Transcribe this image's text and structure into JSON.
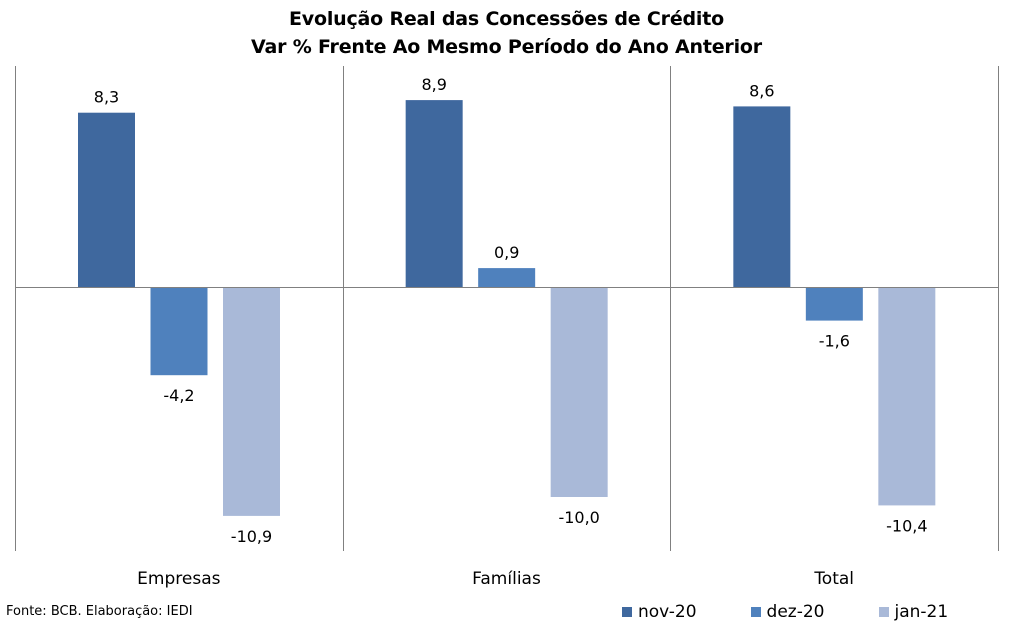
{
  "chart_data": {
    "type": "bar",
    "title": "Evolução Real das Concessões de Crédito",
    "subtitle": "Var % Frente Ao Mesmo Período do Ano Anterior",
    "categories": [
      "Empresas",
      "Famílias",
      "Total"
    ],
    "series": [
      {
        "name": "nov-20",
        "color": "#3F689E",
        "values": [
          8.3,
          8.9,
          8.6
        ],
        "labels": [
          "8,3",
          "8,9",
          "8,6"
        ]
      },
      {
        "name": "dez-20",
        "color": "#4F81BD",
        "values": [
          -4.2,
          0.9,
          -1.6
        ],
        "labels": [
          "-4,2",
          "0,9",
          "-1,6"
        ]
      },
      {
        "name": "jan-21",
        "color": "#A9B9D8",
        "values": [
          -10.9,
          -10.0,
          -10.4
        ],
        "labels": [
          "-10,9",
          "-10,0",
          "-10,4"
        ]
      }
    ],
    "ylim": [
      -12.5,
      10.5
    ],
    "legend": "bottom-right",
    "grid": false
  },
  "footer": {
    "source": "Fonte: BCB. Elaboração: IEDI"
  }
}
